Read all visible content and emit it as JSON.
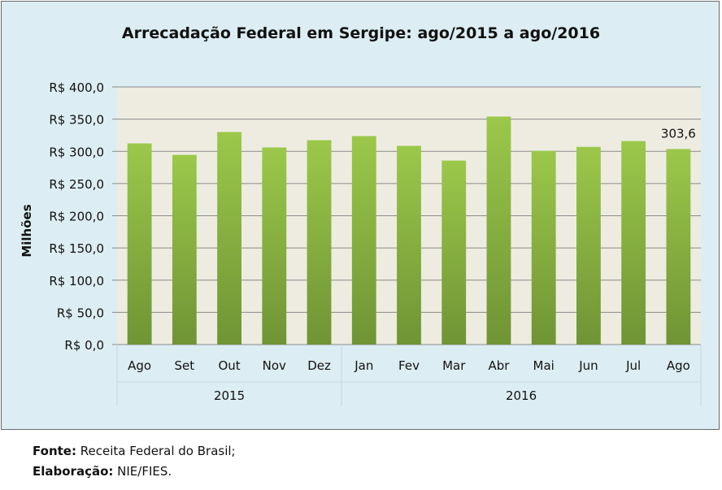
{
  "chart_data": {
    "type": "bar",
    "title": "Arrecadação Federal em Sergipe: ago/2015 a ago/2016",
    "ylabel": "Milhões",
    "xlabel": "",
    "ylim": [
      0,
      400
    ],
    "yticks": [
      "R$ 0,0",
      "R$ 50,0",
      "R$ 100,0",
      "R$ 150,0",
      "R$ 200,0",
      "R$ 250,0",
      "R$ 300,0",
      "R$ 350,0",
      "R$ 400,0"
    ],
    "categories": [
      "Ago",
      "Set",
      "Out",
      "Nov",
      "Dez",
      "Jan",
      "Fev",
      "Mar",
      "Abr",
      "Mai",
      "Jun",
      "Jul",
      "Ago"
    ],
    "groups": [
      {
        "label": "2015",
        "count": 5
      },
      {
        "label": "2016",
        "count": 8
      }
    ],
    "values": [
      312.3,
      294.5,
      330.0,
      306.0,
      317.4,
      323.7,
      308.5,
      285.7,
      354.0,
      300.9,
      307.0,
      316.0,
      303.6
    ],
    "data_labels": [
      {
        "index": 12,
        "text": "303,6"
      }
    ],
    "grid": true,
    "colors": {
      "bar_top": "#9bc84a",
      "bar_bottom": "#6f9435",
      "plot_bg": "#eeece1",
      "frame_bg": "#dcedf3"
    }
  },
  "footer": {
    "source_label": "Fonte:",
    "source": " Receita Federal do Brasil;",
    "credit_label": "Elaboração:",
    "credit": "  NIE/FIES."
  }
}
